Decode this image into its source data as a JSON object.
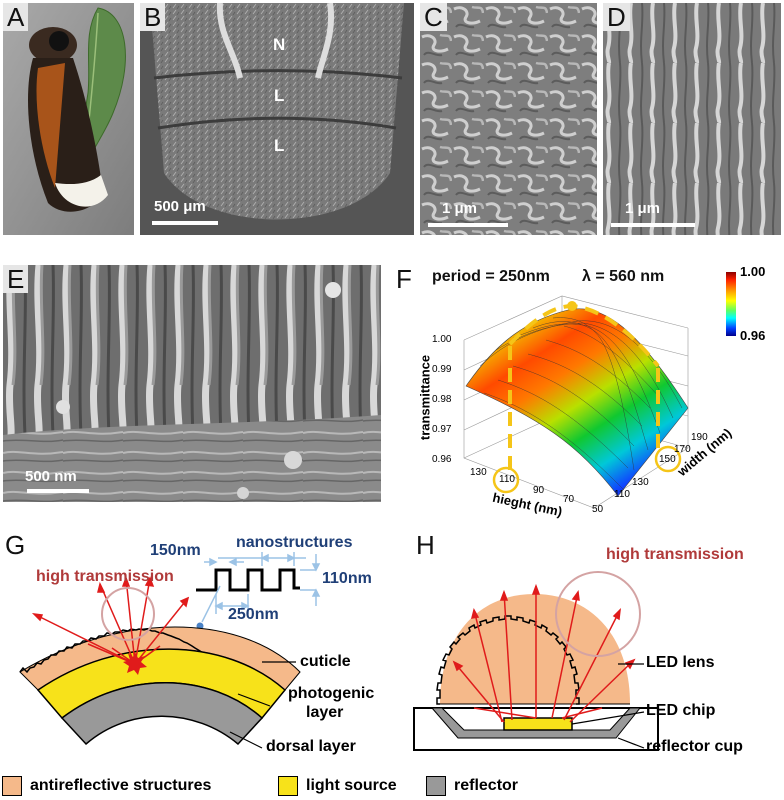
{
  "panels": {
    "A": {
      "label": "A"
    },
    "B": {
      "label": "B",
      "markers": [
        "N",
        "L",
        "L"
      ],
      "scale": "500 μm"
    },
    "C": {
      "label": "C",
      "scale": "1 μm"
    },
    "D": {
      "label": "D",
      "scale": "1 μm"
    },
    "E": {
      "label": "E",
      "scale": "500 nm"
    },
    "F": {
      "label": "F",
      "period_text": "period = 250nm",
      "lambda_text": "λ = 560 nm",
      "colorbar_max": "1.00",
      "colorbar_min": "0.96",
      "zlabel": "transmittance",
      "xlabel": "hieght (nm)",
      "ylabel": "width (nm)",
      "z_ticks": [
        "0.96",
        "0.97",
        "0.98",
        "0.99",
        "1.00"
      ],
      "height_ticks": [
        "130",
        "110",
        "90",
        "70",
        "50"
      ],
      "width_ticks": [
        "110",
        "130",
        "150",
        "170",
        "190"
      ],
      "highlight_height": "110",
      "highlight_width": "150"
    },
    "G": {
      "label": "G",
      "dim_150": "150nm",
      "nanostructures": "nanostructures",
      "dim_110": "110nm",
      "dim_250": "250nm",
      "high_transmission": "high transmission",
      "cuticle": "cuticle",
      "photogenic_1": "photogenic",
      "photogenic_2": "layer",
      "dorsal": "dorsal layer"
    },
    "H": {
      "label": "H",
      "high_transmission": "high transmission",
      "led_lens": "LED lens",
      "led_chip": "LED chip",
      "reflector_cup": "reflector cup"
    }
  },
  "legend": [
    {
      "label": "antireflective structures",
      "color": "#f5b98a"
    },
    {
      "label": "light source",
      "color": "#f7e21a"
    },
    {
      "label": "reflector",
      "color": "#999999"
    }
  ],
  "colors": {
    "orange": "#f5b98a",
    "yellow": "#f7e21a",
    "gray": "#999999",
    "ray": "#e01b1b",
    "dim": "#9cc3e6",
    "dimtext": "#1f3f77",
    "hightrans": "#b03a3a"
  }
}
